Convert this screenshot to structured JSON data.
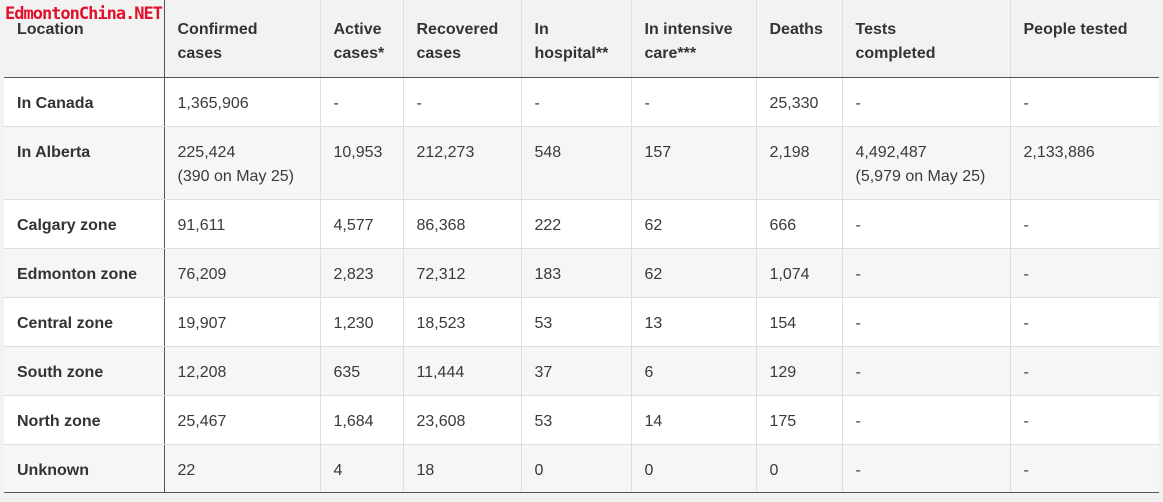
{
  "watermark": "EdmontonChina.NET",
  "headers": [
    {
      "l1": "Location",
      "l2": ""
    },
    {
      "l1": "Confirmed",
      "l2": "cases"
    },
    {
      "l1": "Active",
      "l2": "cases*"
    },
    {
      "l1": "Recovered",
      "l2": "cases"
    },
    {
      "l1": "In",
      "l2": "hospital**"
    },
    {
      "l1": "In intensive",
      "l2": "care***"
    },
    {
      "l1": "Deaths",
      "l2": ""
    },
    {
      "l1": "Tests",
      "l2": "completed"
    },
    {
      "l1": "People tested",
      "l2": ""
    }
  ],
  "rows": [
    {
      "location": "In Canada",
      "confirmed": "1,365,906",
      "confirmed_note": "",
      "active": "-",
      "recovered": "-",
      "hospital": "-",
      "icu": "-",
      "deaths": "25,330",
      "tests": "-",
      "tests_note": "",
      "people": "-"
    },
    {
      "location": "In Alberta",
      "confirmed": "225,424",
      "confirmed_note": "(390 on May 25)",
      "active": "10,953",
      "recovered": "212,273",
      "hospital": "548",
      "icu": "157",
      "deaths": "2,198",
      "tests": "4,492,487",
      "tests_note": "(5,979 on May 25)",
      "people": "2,133,886"
    },
    {
      "location": "Calgary zone",
      "confirmed": "91,611",
      "confirmed_note": "",
      "active": "4,577",
      "recovered": "86,368",
      "hospital": "222",
      "icu": "62",
      "deaths": "666",
      "tests": "-",
      "tests_note": "",
      "people": "-"
    },
    {
      "location": "Edmonton zone",
      "confirmed": "76,209",
      "confirmed_note": "",
      "active": "2,823",
      "recovered": "72,312",
      "hospital": "183",
      "icu": "62",
      "deaths": "1,074",
      "tests": "-",
      "tests_note": "",
      "people": "-"
    },
    {
      "location": "Central zone",
      "confirmed": "19,907",
      "confirmed_note": "",
      "active": "1,230",
      "recovered": "18,523",
      "hospital": "53",
      "icu": "13",
      "deaths": "154",
      "tests": "-",
      "tests_note": "",
      "people": "-"
    },
    {
      "location": "South zone",
      "confirmed": "12,208",
      "confirmed_note": "",
      "active": "635",
      "recovered": "11,444",
      "hospital": "37",
      "icu": "6",
      "deaths": "129",
      "tests": "-",
      "tests_note": "",
      "people": "-"
    },
    {
      "location": "North zone",
      "confirmed": "25,467",
      "confirmed_note": "",
      "active": "1,684",
      "recovered": "23,608",
      "hospital": "53",
      "icu": "14",
      "deaths": "175",
      "tests": "-",
      "tests_note": "",
      "people": "-"
    },
    {
      "location": "Unknown",
      "confirmed": "22",
      "confirmed_note": "",
      "active": "4",
      "recovered": "18",
      "hospital": "0",
      "icu": "0",
      "deaths": "0",
      "tests": "-",
      "tests_note": "",
      "people": "-"
    }
  ]
}
